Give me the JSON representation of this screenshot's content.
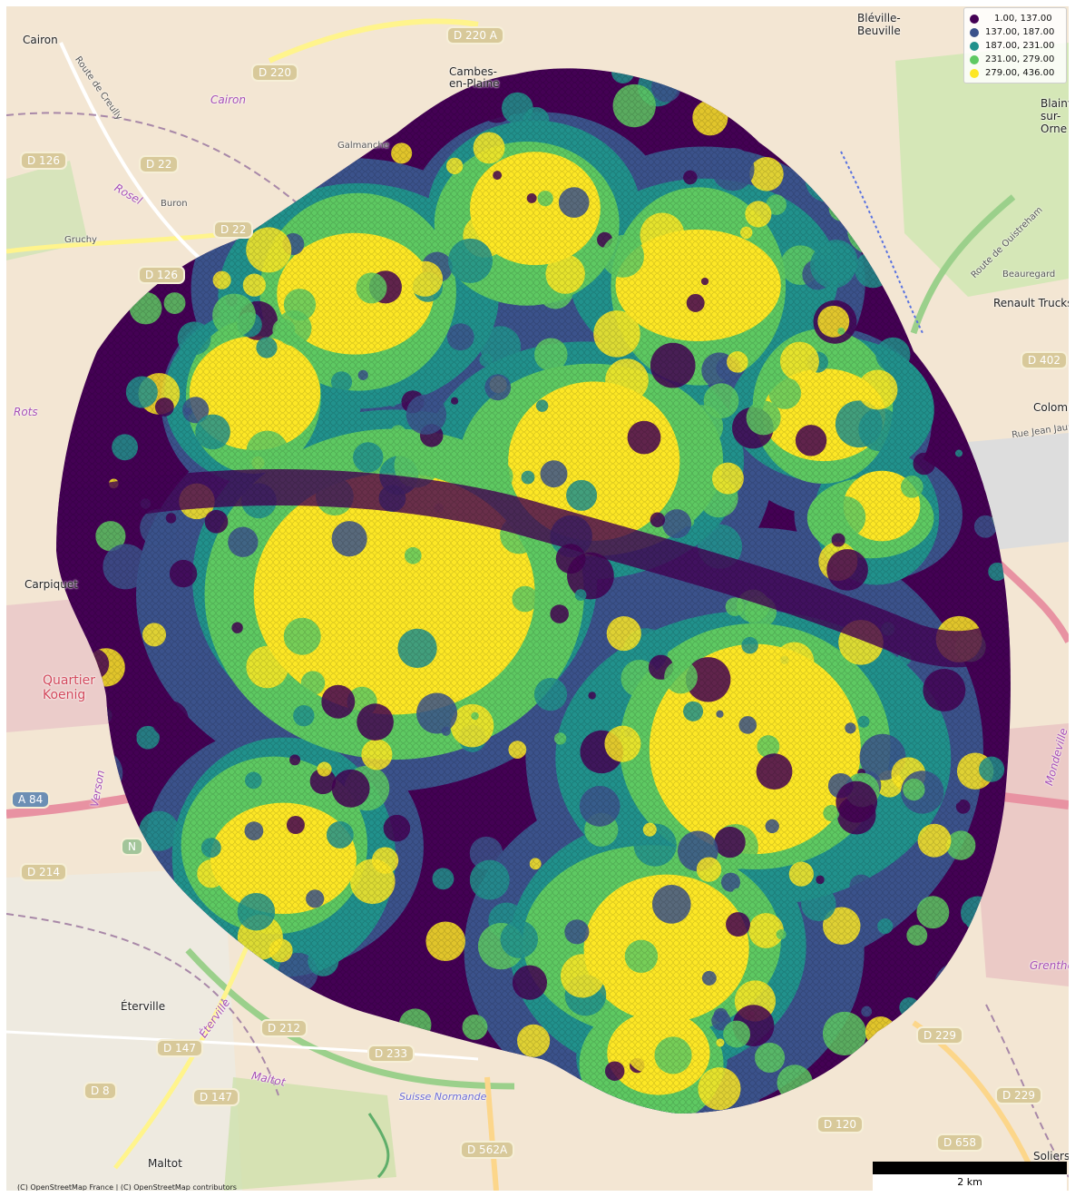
{
  "basemap": {
    "attribution": "(C) OpenStreetMap France | (C) OpenStreetMap contributors",
    "places": [
      {
        "name": "Cairon",
        "style": ""
      },
      {
        "name": "Cambes-en-Plaine",
        "style": ""
      },
      {
        "name": "Bléville-Beuville",
        "style": ""
      },
      {
        "name": "Cairon",
        "style": "purple"
      },
      {
        "name": "Galmanche",
        "style": "small"
      },
      {
        "name": "Rosel",
        "style": "purple"
      },
      {
        "name": "Buron",
        "style": "small"
      },
      {
        "name": "Gruchy",
        "style": "small"
      },
      {
        "name": "Rots",
        "style": "purple"
      },
      {
        "name": "Carpiquet",
        "style": ""
      },
      {
        "name": "Quartier Koenig",
        "style": "red"
      },
      {
        "name": "Verson",
        "style": "purple"
      },
      {
        "name": "Éterville",
        "style": ""
      },
      {
        "name": "Éterville",
        "style": "purple"
      },
      {
        "name": "Maltot",
        "style": "purple"
      },
      {
        "name": "Maltot",
        "style": ""
      },
      {
        "name": "Beauregard",
        "style": "small"
      },
      {
        "name": "Renault Trucks",
        "style": ""
      },
      {
        "name": "Colombelles",
        "style": ""
      },
      {
        "name": "Rue Jean Jaurès",
        "style": "small"
      },
      {
        "name": "Mondeville",
        "style": "purple"
      },
      {
        "name": "Grentheville",
        "style": "purple"
      },
      {
        "name": "Soliers",
        "style": ""
      },
      {
        "name": "Suisse Normande",
        "style": "blue"
      },
      {
        "name": "Blainville-sur-Orne",
        "style": ""
      },
      {
        "name": "Route de Creully",
        "style": "small"
      },
      {
        "name": "Route de Ouistreham",
        "style": "small"
      }
    ],
    "road_shields": [
      "D 220 A",
      "D 220",
      "D 126",
      "D 22",
      "D 22",
      "D 126",
      "A 84",
      "N",
      "D 214",
      "D 212",
      "D 147",
      "D 233",
      "D 8",
      "D 147",
      "D 562A",
      "D 229",
      "D 229",
      "D 120",
      "D 658",
      "D 402"
    ]
  },
  "legend": {
    "entries": [
      {
        "label": "1.00, 137.00",
        "color": "#440154"
      },
      {
        "label": "137.00, 187.00",
        "color": "#3b528b"
      },
      {
        "label": "187.00, 231.00",
        "color": "#21918c"
      },
      {
        "label": "231.00, 279.00",
        "color": "#5ec962"
      },
      {
        "label": "279.00, 436.00",
        "color": "#fde725"
      }
    ]
  },
  "scale_bar": {
    "label": "2 km"
  }
}
